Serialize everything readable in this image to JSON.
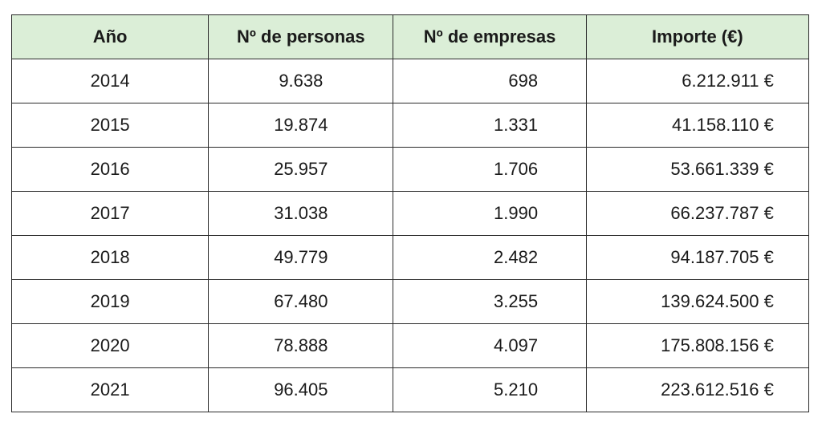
{
  "table": {
    "headers": [
      "Año",
      "Nº de personas",
      "Nº de empresas",
      "Importe (€)"
    ],
    "rows": [
      [
        "2014",
        "9.638",
        "698",
        "6.212.911 €"
      ],
      [
        "2015",
        "19.874",
        "1.331",
        "41.158.110 €"
      ],
      [
        "2016",
        "25.957",
        "1.706",
        "53.661.339 €"
      ],
      [
        "2017",
        "31.038",
        "1.990",
        "66.237.787 €"
      ],
      [
        "2018",
        "49.779",
        "2.482",
        "94.187.705 €"
      ],
      [
        "2019",
        "67.480",
        "3.255",
        "139.624.500 €"
      ],
      [
        "2020",
        "78.888",
        "4.097",
        "175.808.156 €"
      ],
      [
        "2021",
        "96.405",
        "5.210",
        "223.612.516 €"
      ]
    ]
  },
  "colors": {
    "header_background": "#dbeed7",
    "border": "#2b2b2b"
  }
}
